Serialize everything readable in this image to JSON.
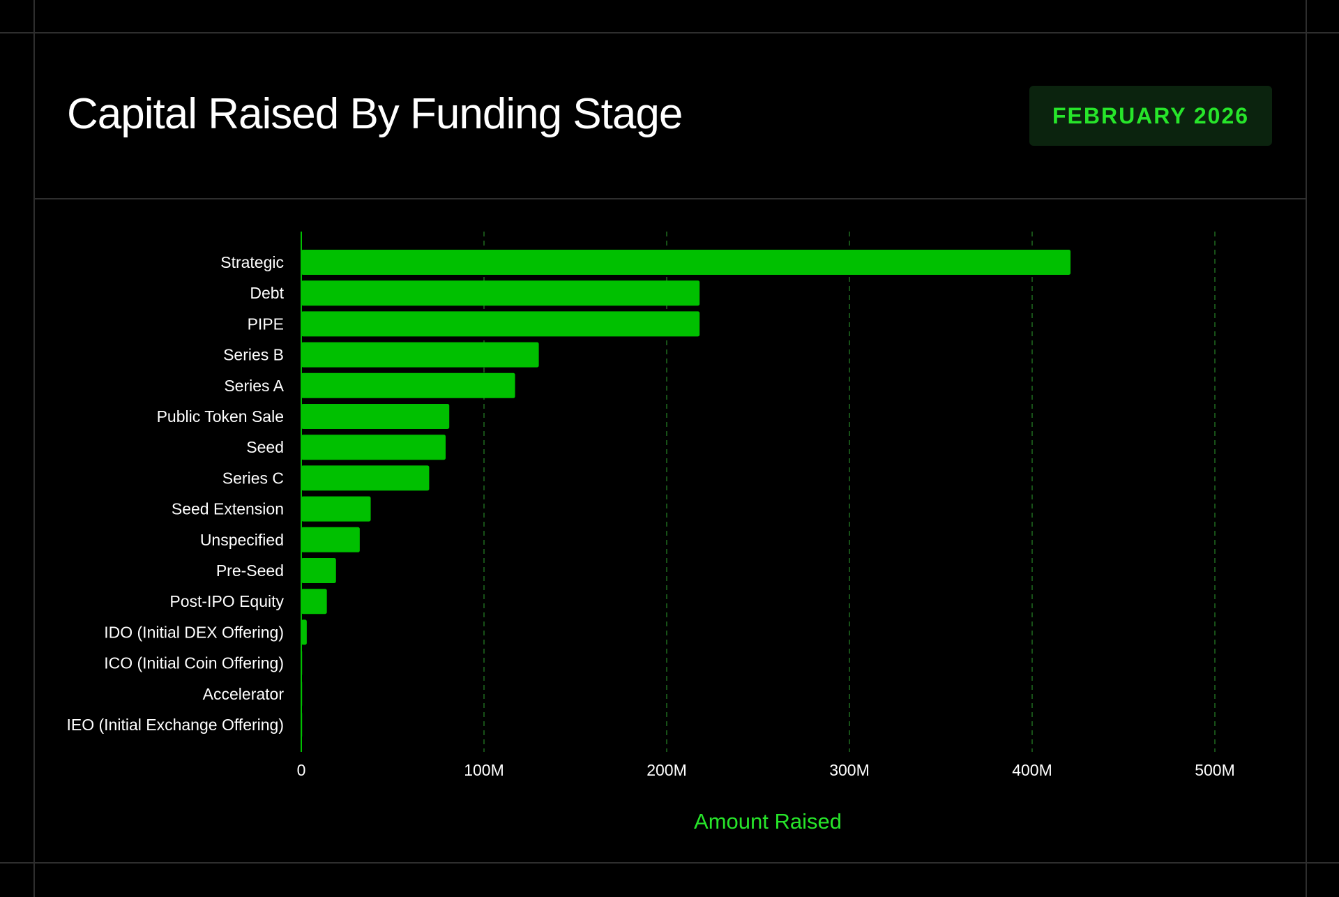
{
  "header": {
    "title": "Capital Raised By Funding Stage",
    "period_badge": "FEBRUARY 2026"
  },
  "colors": {
    "background": "#000000",
    "bar": "#00c000",
    "accent": "#27e52a",
    "badge_bg": "#0b230e",
    "grid": "#1f6b1f"
  },
  "chart_data": {
    "type": "bar",
    "orientation": "horizontal",
    "categories": [
      "Strategic",
      "Debt",
      "PIPE",
      "Series B",
      "Series A",
      "Public Token Sale",
      "Seed",
      "Series C",
      "Seed Extension",
      "Unspecified",
      "Pre-Seed",
      "Post-IPO Equity",
      "IDO (Initial DEX Offering)",
      "ICO (Initial Coin Offering)",
      "Accelerator",
      "IEO (Initial Exchange Offering)"
    ],
    "values": [
      421,
      218,
      218,
      130,
      117,
      81,
      79,
      70,
      38,
      32,
      19,
      14,
      3,
      0.3,
      0.2,
      0.2
    ],
    "value_unit": "M",
    "xlabel": "Amount Raised",
    "ylabel": "",
    "xlim": [
      0,
      500
    ],
    "x_ticks": [
      0,
      100,
      200,
      300,
      400,
      500
    ],
    "x_tick_labels": [
      "0",
      "100M",
      "200M",
      "300M",
      "400M",
      "500M"
    ],
    "grid": "vertical dashed",
    "legend": "none"
  }
}
